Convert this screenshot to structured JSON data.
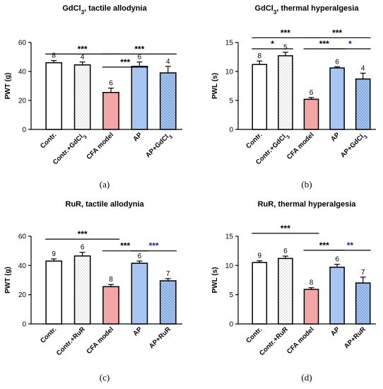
{
  "chart_data": [
    {
      "type": "bar",
      "panel_label": "(a)",
      "title_main": "GdCl",
      "title_sub": "3",
      "title_rest": ", tactile allodynia",
      "ylabel": "PWT (g)",
      "ylim": [
        0,
        60
      ],
      "yticks": [
        "0",
        "20",
        "40",
        "60"
      ],
      "categories": [
        {
          "label": "Contr.",
          "sub": ""
        },
        {
          "label": "Contr.+GdCl",
          "sub": "3"
        },
        {
          "label": "CFA model",
          "sub": ""
        },
        {
          "label": "AP",
          "sub": ""
        },
        {
          "label": "AP+GdCl",
          "sub": "3"
        }
      ],
      "values": [
        46,
        44.5,
        25.5,
        43.5,
        39
      ],
      "errors": [
        1.5,
        2,
        3,
        3,
        4.5
      ],
      "n": [
        "8",
        "4",
        "6",
        "6",
        "4"
      ],
      "fills": [
        "white",
        "dots",
        "pink",
        "blue",
        "bluedots"
      ],
      "significance": [
        {
          "from": 0,
          "to": 2,
          "level": 52,
          "label": "***",
          "color": "#000000"
        },
        {
          "from": 2,
          "to": 4,
          "level": 52,
          "label": "***",
          "color": "#000000"
        },
        {
          "from": 2,
          "to": 3,
          "level": 43,
          "label": "***",
          "color": "#000000"
        }
      ]
    },
    {
      "type": "bar",
      "panel_label": "(b)",
      "title_main": "GdCl",
      "title_sub": "3",
      "title_rest": ", thermal hyperalgesia",
      "ylabel": "PWL (s)",
      "ylim": [
        0,
        15
      ],
      "yticks": [
        "0",
        "5",
        "10",
        "15"
      ],
      "categories": [
        {
          "label": "Contr.",
          "sub": ""
        },
        {
          "label": "Contr.+GdCl",
          "sub": "3"
        },
        {
          "label": "CFA model",
          "sub": ""
        },
        {
          "label": "AP",
          "sub": ""
        },
        {
          "label": "AP+GdCl",
          "sub": "3"
        }
      ],
      "values": [
        11.2,
        12.7,
        5.2,
        10.6,
        8.7
      ],
      "errors": [
        0.6,
        0.6,
        0.3,
        0.2,
        1
      ],
      "n": [
        "8",
        "5",
        "6",
        "6",
        "4"
      ],
      "fills": [
        "white",
        "dots",
        "pink",
        "blue",
        "bluedots"
      ],
      "significance": [
        {
          "from": 0,
          "to": 2,
          "level": 15.8,
          "label": "***",
          "color": "#000000"
        },
        {
          "from": 2,
          "to": 4,
          "level": 15.8,
          "label": "***",
          "color": "#000000"
        },
        {
          "from": 0,
          "to": 1,
          "level": 13.9,
          "label": "*",
          "color": "#000000"
        },
        {
          "from": 2,
          "to": 3,
          "level": 13.9,
          "label": "***",
          "color": "#000000"
        },
        {
          "from": 3,
          "to": 4,
          "level": 13.9,
          "label": "*",
          "color": "#1a1aa6"
        }
      ]
    },
    {
      "type": "bar",
      "panel_label": "(c)",
      "title_main": "RuR",
      "title_sub": "",
      "title_rest": ", tactile allodynia",
      "ylabel": "PWT (g)",
      "ylim": [
        0,
        60
      ],
      "yticks": [
        "0",
        "20",
        "40",
        "60"
      ],
      "categories": [
        {
          "label": "Contr.",
          "sub": ""
        },
        {
          "label": "Contr.+RuR",
          "sub": ""
        },
        {
          "label": "CFA model",
          "sub": ""
        },
        {
          "label": "AP",
          "sub": ""
        },
        {
          "label": "AP+RuR",
          "sub": ""
        }
      ],
      "values": [
        43,
        46.5,
        25.5,
        41.5,
        29.5
      ],
      "errors": [
        1.5,
        2.5,
        1.5,
        1.5,
        1.5
      ],
      "n": [
        "9",
        "6",
        "8",
        "6",
        "7"
      ],
      "fills": [
        "white",
        "dots",
        "pink",
        "blue",
        "bluedots"
      ],
      "significance": [
        {
          "from": 0,
          "to": 2,
          "level": 58,
          "label": "***",
          "color": "#000000"
        },
        {
          "from": 2,
          "to": 3,
          "level": 50,
          "label": "***",
          "color": "#000000"
        },
        {
          "from": 3,
          "to": 4,
          "level": 50,
          "label": "***",
          "color": "#1a1aa6"
        }
      ]
    },
    {
      "type": "bar",
      "panel_label": "(d)",
      "title_main": "RuR,",
      "title_sub": "",
      "title_rest": "  thermal hyperalgesia",
      "ylabel": "PWL (s)",
      "ylim": [
        0,
        15
      ],
      "yticks": [
        "0",
        "5",
        "10",
        "15"
      ],
      "categories": [
        {
          "label": "Contr.",
          "sub": ""
        },
        {
          "label": "Contr.+RuR",
          "sub": ""
        },
        {
          "label": "CFA model",
          "sub": ""
        },
        {
          "label": "AP",
          "sub": ""
        },
        {
          "label": "AP+RuR",
          "sub": ""
        }
      ],
      "values": [
        10.5,
        11.2,
        5.9,
        9.7,
        7
      ],
      "errors": [
        0.3,
        0.4,
        0.3,
        0.5,
        1
      ],
      "n": [
        "9",
        "6",
        "8",
        "6",
        "7"
      ],
      "fills": [
        "white",
        "dots",
        "pink",
        "blue",
        "bluedots"
      ],
      "significance": [
        {
          "from": 0,
          "to": 2,
          "level": 15.5,
          "label": "***",
          "color": "#000000"
        },
        {
          "from": 2,
          "to": 3,
          "level": 12.6,
          "label": "***",
          "color": "#000000"
        },
        {
          "from": 3,
          "to": 4,
          "level": 12.6,
          "label": "**",
          "color": "#1a1aa6"
        }
      ]
    }
  ],
  "colors": {
    "pink": "#f4a5a5",
    "blue": "#a7c6f3",
    "dot_gray": "#8a8a8a",
    "dot_blue": "#3b5c9c",
    "sig_blue": "#1a1aa6"
  }
}
